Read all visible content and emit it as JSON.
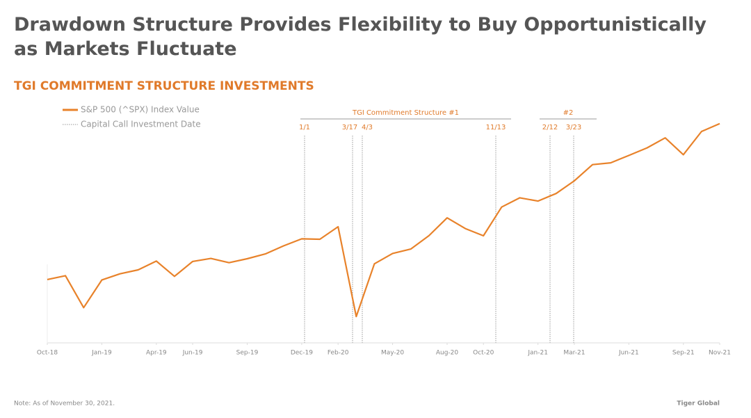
{
  "title": "Drawdown Structure Provides Flexibility to Buy Opportunistically as Markets Fluctuate",
  "note": "Note: As of November 30, 2021.",
  "footer": "Tiger Global",
  "chart_data": {
    "type": "line",
    "title": "TGI COMMITMENT STRUCTURE INVESTMENTS",
    "x": [
      "2018-10",
      "2018-11",
      "2018-12",
      "2019-01",
      "2019-02",
      "2019-03",
      "2019-04",
      "2019-05",
      "2019-06",
      "2019-07",
      "2019-08",
      "2019-09",
      "2019-10",
      "2019-11",
      "2019-12",
      "2020-01",
      "2020-02",
      "2020-03",
      "2020-04",
      "2020-05",
      "2020-06",
      "2020-07",
      "2020-08",
      "2020-09",
      "2020-10",
      "2020-11",
      "2020-12",
      "2021-01",
      "2021-02",
      "2021-03",
      "2021-04",
      "2021-05",
      "2021-06",
      "2021-07",
      "2021-08",
      "2021-09",
      "2021-10",
      "2021-11"
    ],
    "series": [
      {
        "name": "S&P 500 (^SPX) Index Value",
        "color": "#e8822a",
        "values": [
          2711,
          2760,
          2351,
          2704,
          2784,
          2834,
          2946,
          2752,
          2942,
          2980,
          2926,
          2977,
          3038,
          3141,
          3231,
          3226,
          3386,
          2237,
          2912,
          3044,
          3100,
          3271,
          3500,
          3363,
          3270,
          3638,
          3756,
          3714,
          3811,
          3973,
          4181,
          4204,
          4298,
          4395,
          4523,
          4308,
          4605,
          4705
        ]
      }
    ],
    "marker_legend": "Capital Call Investment Date",
    "ylim": [
      1900,
      5050
    ],
    "xlim": [
      "2018-10",
      "2021-11"
    ],
    "xticks": [
      {
        "value": "2018-10",
        "label": "Oct-18"
      },
      {
        "value": "2019-01",
        "label": "Jan-19"
      },
      {
        "value": "2019-04",
        "label": "Apr-19"
      },
      {
        "value": "2019-06",
        "label": "Jun-19"
      },
      {
        "value": "2019-09",
        "label": "Sep-19"
      },
      {
        "value": "2019-12",
        "label": "Dec-19"
      },
      {
        "value": "2020-02",
        "label": "Feb-20"
      },
      {
        "value": "2020-05",
        "label": "May-20"
      },
      {
        "value": "2020-08",
        "label": "Aug-20"
      },
      {
        "value": "2020-10",
        "label": "Oct-20"
      },
      {
        "value": "2021-01",
        "label": "Jan-21"
      },
      {
        "value": "2021-03",
        "label": "Mar-21"
      },
      {
        "value": "2021-06",
        "label": "Jun-21"
      },
      {
        "value": "2021-09",
        "label": "Sep-21"
      },
      {
        "value": "2021-11",
        "label": "Nov-21"
      }
    ],
    "groups": [
      "TGI Commitment Structure #1",
      "#2"
    ],
    "call_dates": [
      "1/1",
      "3/17",
      "4/3",
      "11/13",
      "2/12",
      "3/23"
    ]
  }
}
